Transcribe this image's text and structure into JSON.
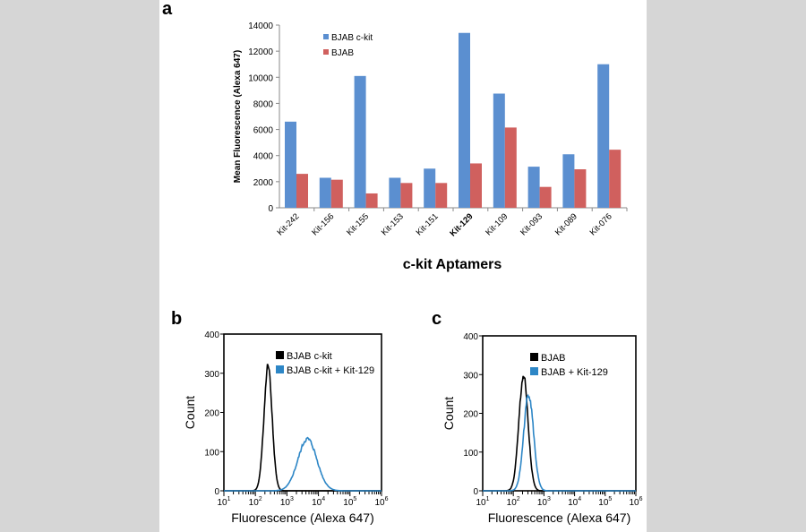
{
  "chart_data": [
    {
      "type": "bar",
      "panel_label": "a",
      "title": "",
      "xlabel": "c-kit Aptamers",
      "ylabel": "Mean Fluorescence (Alexa 647)",
      "ylim": [
        0,
        14000
      ],
      "yticks": [
        "0",
        "2000",
        "4000",
        "6000",
        "8000",
        "10000",
        "12000",
        "14000"
      ],
      "categories": [
        "Kit-242",
        "Kit-156",
        "Kit-155",
        "Kit-153",
        "Kit-151",
        "Kit-129",
        "Kit-109",
        "Kit-093",
        "Kit-089",
        "Kit-076"
      ],
      "bold_category": "Kit-129",
      "series": [
        {
          "name": "BJAB c-kit",
          "color": "#5b8fd0",
          "values": [
            6600,
            2300,
            10100,
            2300,
            3000,
            13400,
            8750,
            3150,
            4100,
            11000
          ]
        },
        {
          "name": "BJAB",
          "color": "#d0605e",
          "values": [
            2600,
            2150,
            1100,
            1900,
            1900,
            3400,
            6150,
            1600,
            2950,
            4450
          ]
        }
      ],
      "legend": "top-left"
    },
    {
      "type": "line",
      "panel_label": "b",
      "xlabel": "Fluorescence (Alexa 647)",
      "ylabel": "Count",
      "ylim": [
        0,
        400
      ],
      "xlim_log10": [
        1,
        6
      ],
      "yticks": [
        "0",
        "100",
        "200",
        "300",
        "400"
      ],
      "xticks": [
        "10^1",
        "10^2",
        "10^3",
        "10^4",
        "10^5",
        "10^6"
      ],
      "series": [
        {
          "name": "BJAB c-kit",
          "color": "#000000",
          "peak_log10": 2.4,
          "peak_count": 315,
          "sigma_log10": 0.13
        },
        {
          "name": "BJAB c-kit + Kit-129",
          "color": "#2d86c6",
          "peak_log10": 3.65,
          "peak_count": 132,
          "sigma_log10": 0.3
        }
      ],
      "legend": "top-right"
    },
    {
      "type": "line",
      "panel_label": "c",
      "xlabel": "Fluorescence (Alexa 647)",
      "ylabel": "Count",
      "ylim": [
        0,
        400
      ],
      "xlim_log10": [
        1,
        6
      ],
      "yticks": [
        "0",
        "100",
        "200",
        "300",
        "400"
      ],
      "xticks": [
        "10^1",
        "10^2",
        "10^3",
        "10^4",
        "10^5",
        "10^6"
      ],
      "series": [
        {
          "name": "BJAB",
          "color": "#000000",
          "peak_log10": 2.33,
          "peak_count": 295,
          "sigma_log10": 0.15
        },
        {
          "name": "BJAB + Kit-129",
          "color": "#2d86c6",
          "peak_log10": 2.5,
          "peak_count": 250,
          "sigma_log10": 0.16
        }
      ],
      "legend": "top-right"
    }
  ]
}
